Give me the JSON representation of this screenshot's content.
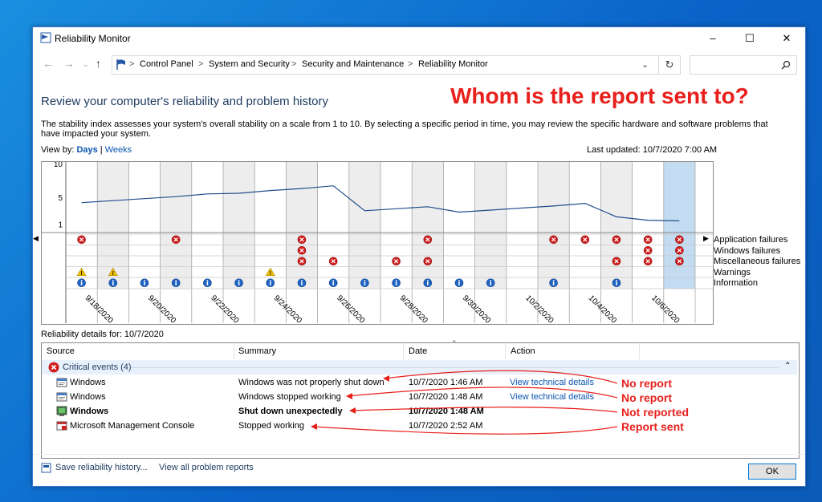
{
  "window": {
    "title": "Reliability Monitor",
    "controls": [
      "–",
      "☐",
      "✕"
    ]
  },
  "address_bar": {
    "crumbs": [
      "Control Panel",
      "System and Security",
      "Security and Maintenance",
      "Reliability Monitor"
    ],
    "separator": ">"
  },
  "search": {
    "placeholder": ""
  },
  "page": {
    "heading": "Review your computer's reliability and problem history",
    "question": "Whom is the report sent to?",
    "description": "The stability index assesses your system's overall stability on a scale from 1 to 10. By selecting a specific period in time, you may review the specific hardware and software problems that have impacted your system.",
    "view_by_label": "View by:",
    "view_days": "Days",
    "view_sep": " | ",
    "view_weeks": "Weeks",
    "last_updated": "Last updated: 10/7/2020 7:00 AM"
  },
  "chart": {
    "y_ticks": [
      "10",
      "5",
      "1"
    ],
    "row_labels": [
      "Application failures",
      "Windows failures",
      "Miscellaneous failures",
      "Warnings",
      "Information"
    ],
    "date_labels": [
      "9/18/2020",
      "9/20/2020",
      "9/22/2020",
      "9/24/2020",
      "9/26/2020",
      "9/28/2020",
      "9/30/2020",
      "10/2/2020",
      "10/4/2020",
      "10/6/2020"
    ],
    "columns": 20,
    "selected_column": 19,
    "stability_index": [
      4.2,
      4.5,
      4.8,
      5.1,
      5.5,
      5.6,
      6.0,
      6.3,
      6.7,
      3.0,
      3.3,
      3.6,
      2.8,
      3.1,
      3.4,
      3.7,
      4.1,
      2.1,
      1.6,
      1.5
    ],
    "events": {
      "app": [
        0,
        3,
        7,
        11,
        15,
        16,
        17,
        18,
        19
      ],
      "win": [
        7,
        18,
        19
      ],
      "misc": [
        7,
        8,
        10,
        11,
        17,
        18,
        19
      ],
      "warn": [
        0,
        1,
        6
      ],
      "info": [
        0,
        1,
        2,
        3,
        4,
        5,
        6,
        7,
        8,
        9,
        10,
        11,
        12,
        13,
        15,
        17
      ]
    }
  },
  "details": {
    "label": "Reliability details for: 10/7/2020",
    "columns": [
      "Source",
      "Summary",
      "Date",
      "Action"
    ],
    "group": "Critical events (4)",
    "rows": [
      {
        "source": "Windows",
        "summary": "Windows was not properly shut down",
        "date": "10/7/2020 1:46 AM",
        "action": "View technical details",
        "bold": false
      },
      {
        "source": "Windows",
        "summary": "Windows stopped working",
        "date": "10/7/2020 1:48 AM",
        "action": "View technical details",
        "bold": false
      },
      {
        "source": "Windows",
        "summary": "Shut down unexpectedly",
        "date": "10/7/2020 1:48 AM",
        "action": "",
        "bold": true
      },
      {
        "source": "Microsoft Management Console",
        "summary": "Stopped working",
        "date": "10/7/2020 2:52 AM",
        "action": "",
        "bold": false
      }
    ],
    "annotations": [
      "No report",
      "No report",
      "Not reported",
      "Report sent"
    ]
  },
  "footer": {
    "save_link": "Save reliability history...",
    "view_all_link": "View all problem reports",
    "ok_label": "OK"
  },
  "colors": {
    "annotation": "#e8201c",
    "accent": "#0a55b0",
    "selected_column": "#c4dcf2"
  }
}
